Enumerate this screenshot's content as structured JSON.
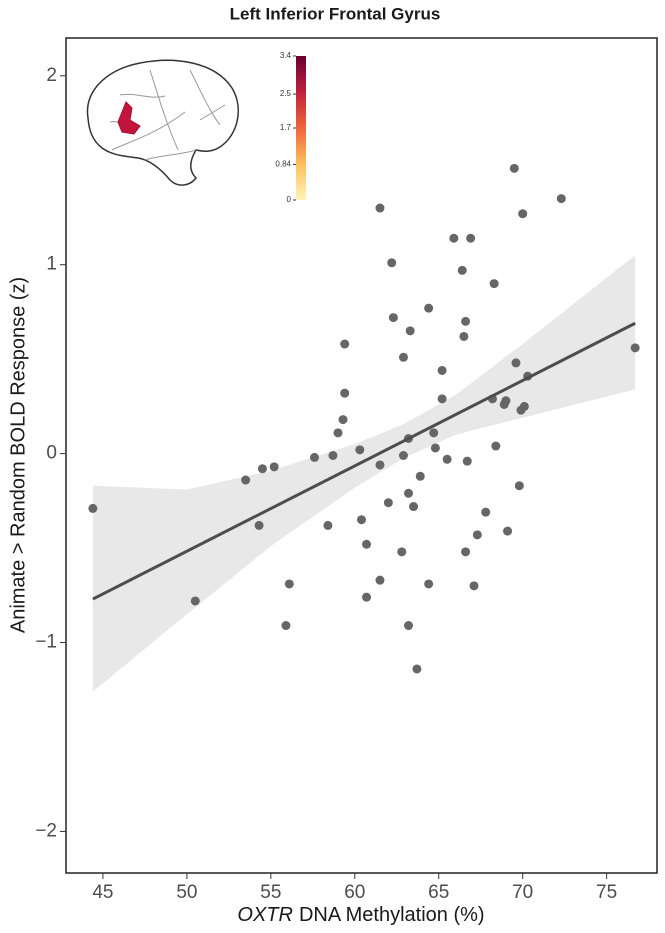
{
  "chart_data": {
    "type": "scatter",
    "title": "Left Inferior Frontal Gyrus",
    "xlabel": [
      "OXTR",
      "DNA Methylation (%)"
    ],
    "ylabel": "Animate > Random BOLD Response (z)",
    "xlim": [
      42.8,
      78.0
    ],
    "ylim": [
      -2.22,
      2.2
    ],
    "xticks": [
      45,
      50,
      55,
      60,
      65,
      70,
      75
    ],
    "yticks": [
      {
        "value": -2,
        "label": "−2"
      },
      {
        "value": -1,
        "label": "−1"
      },
      0,
      1,
      2
    ],
    "points": {
      "color": "#666666",
      "x": [
        44.4,
        50.5,
        53.5,
        54.5,
        55.2,
        54.3,
        55.9,
        56.1,
        57.6,
        58.7,
        58.4,
        59.0,
        59.3,
        59.4,
        59.4,
        60.3,
        60.4,
        60.7,
        60.7,
        61.5,
        61.5,
        61.5,
        62.2,
        62.3,
        62.0,
        62.9,
        62.9,
        62.8,
        63.2,
        63.3,
        63.2,
        63.5,
        63.2,
        63.7,
        63.9,
        64.4,
        64.4,
        64.7,
        64.8,
        65.2,
        65.2,
        65.5,
        65.9,
        66.4,
        66.5,
        66.6,
        66.9,
        66.7,
        66.6,
        67.1,
        67.3,
        67.8,
        68.2,
        68.4,
        68.3,
        68.9,
        69.0,
        69.1,
        69.5,
        69.6,
        69.8,
        69.9,
        70.1,
        70.0,
        70.3,
        72.3,
        76.7
      ],
      "y": [
        -0.29,
        -0.78,
        -0.14,
        -0.08,
        -0.07,
        -0.38,
        -0.91,
        -0.69,
        -0.02,
        -0.01,
        -0.38,
        0.11,
        0.18,
        0.32,
        0.58,
        0.02,
        -0.35,
        -0.48,
        -0.76,
        -0.06,
        -0.67,
        1.3,
        1.01,
        0.72,
        -0.26,
        0.51,
        -0.01,
        -0.52,
        0.08,
        0.65,
        -0.21,
        -0.28,
        -0.91,
        -1.14,
        -0.12,
        0.77,
        -0.69,
        0.11,
        0.03,
        0.44,
        0.29,
        -0.03,
        1.14,
        0.97,
        0.62,
        0.7,
        1.14,
        -0.04,
        -0.52,
        -0.7,
        -0.43,
        -0.31,
        0.29,
        0.04,
        0.9,
        0.26,
        0.28,
        -0.41,
        1.51,
        0.48,
        -0.17,
        0.23,
        0.25,
        1.27,
        0.41,
        1.35,
        0.56
      ]
    },
    "fit": {
      "color": "#4d4d4d",
      "x": [
        44.4,
        76.7
      ],
      "y": [
        -0.77,
        0.69
      ]
    },
    "band": {
      "color": "#e8e8e8",
      "x": [
        44.4,
        50,
        55,
        60,
        63,
        66,
        70,
        76.7
      ],
      "lower": [
        -1.26,
        -0.85,
        -0.49,
        -0.18,
        -0.02,
        0.1,
        0.19,
        0.34
      ],
      "upper": [
        -0.17,
        -0.19,
        -0.09,
        0.05,
        0.16,
        0.31,
        0.58,
        1.05
      ]
    },
    "colorbar": {
      "lim": [
        0,
        3.4
      ],
      "ticks": [
        0,
        0.84,
        1.7,
        2.5,
        3.4
      ],
      "colors": [
        "#fff5b8",
        "#fdbf5c",
        "#f0663a",
        "#c01f3c",
        "#6b0030"
      ]
    }
  }
}
